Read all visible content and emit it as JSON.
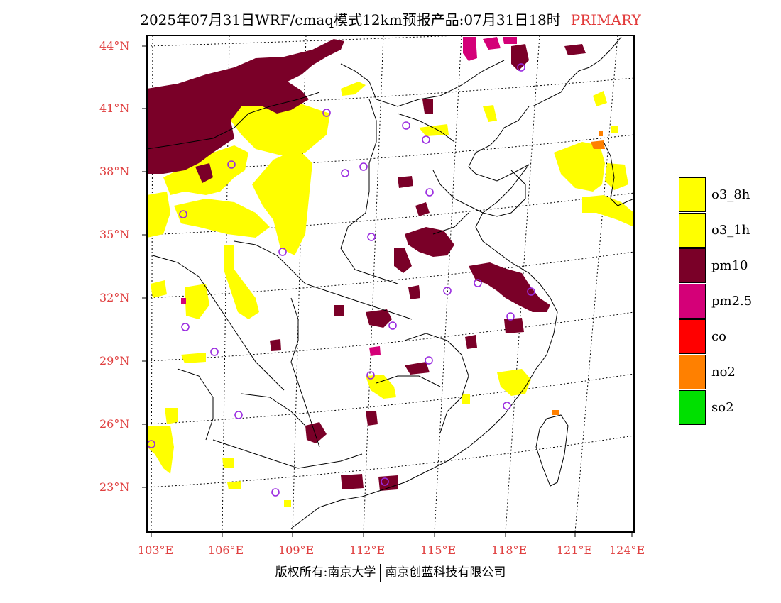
{
  "title": {
    "main": "2025年07月31日WRF/cmaq模式12km预报产品:07月31日18时",
    "tag": "PRIMARY"
  },
  "axes": {
    "lat_labels": [
      "44°N",
      "41°N",
      "38°N",
      "35°N",
      "32°N",
      "29°N",
      "26°N",
      "23°N"
    ],
    "lon_labels": [
      "103°E",
      "106°E",
      "109°E",
      "112°E",
      "115°E",
      "118°E",
      "121°E",
      "124°E"
    ]
  },
  "legend": [
    {
      "label": "o3_8h",
      "color": "#ffff00"
    },
    {
      "label": "o3_1h",
      "color": "#ffff00"
    },
    {
      "label": "pm10",
      "color": "#7a0028"
    },
    {
      "label": "pm2.5",
      "color": "#d40078"
    },
    {
      "label": "co",
      "color": "#ff0000"
    },
    {
      "label": "no2",
      "color": "#ff8000"
    },
    {
      "label": "so2",
      "color": "#00e000"
    }
  ],
  "footer": {
    "left": "版权所有:南京大学",
    "right": "南京创蓝科技有限公司"
  },
  "colors": {
    "o3": "#ffff00",
    "pm10": "#7a0028",
    "pm25": "#d40078",
    "no2": "#ff8000",
    "station": "#9a2be0",
    "tick_label": "#e04040"
  }
}
